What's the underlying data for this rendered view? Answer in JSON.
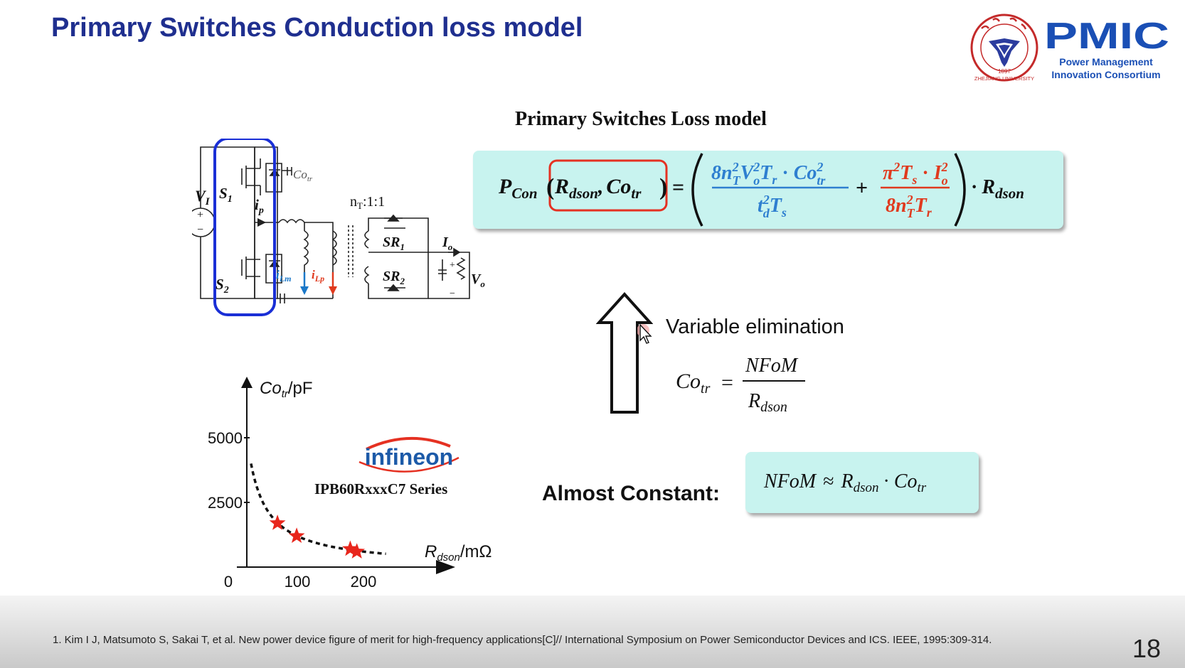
{
  "slide": {
    "title": "Primary Switches Conduction loss model",
    "page_number": "18",
    "footnote": "1. Kim I J, Matsumoto S, Sakai T, et al. New power device figure of merit for high-frequency applications[C]// International Symposium on Power Semiconductor Devices and ICS. IEEE, 1995:309-314."
  },
  "logo": {
    "brand": "PMIC",
    "line1": "Power Management",
    "line2": "Innovation Consortium",
    "seal_text": "ZHEJIANG UNIVERSITY",
    "seal_year": "1897"
  },
  "loss_model": {
    "heading": "Primary Switches Loss model",
    "equation": {
      "lhs_P": "P",
      "lhs_P_sub": "Con",
      "arg_R": "R",
      "arg_R_sub": "dson",
      "arg_sep": ",",
      "arg_C": "Co",
      "arg_C_sub": "tr",
      "equals": "=",
      "term1_num": "8n",
      "term1_den": "t",
      "plus": "+",
      "term2_den": "8n",
      "mult": "·",
      "rhs_R": "R",
      "rhs_R_sub": "dson"
    },
    "colors": {
      "term1": "#2e7fd0",
      "term2": "#e03a1e",
      "highlight_box": "#e53122",
      "box_bg": "#c8f3ef"
    }
  },
  "circuit": {
    "vin": "V",
    "vin_sub": "I",
    "s1": "S",
    "s1_sub": "1",
    "s2": "S",
    "s2_sub": "2",
    "cotr": "Co",
    "cotr_sub": "tr",
    "ip": "i",
    "ip_sub": "p",
    "ilm": "i",
    "ilm_sub": "Lm",
    "ilp": "i",
    "ilp_sub": "Lp",
    "turns": "n",
    "turns_sub": "T",
    "turns_ratio": ":1:1",
    "sr1": "SR",
    "sr1_sub": "1",
    "sr2": "SR",
    "sr2_sub": "2",
    "io": "I",
    "io_sub": "o",
    "vo": "V",
    "vo_sub": "o",
    "plus": "+",
    "minus": "−",
    "colors": {
      "highlight": "#1a2fd6",
      "ilm": "#1b78c8",
      "ilp": "#e03a1e"
    }
  },
  "chart_data": {
    "type": "scatter",
    "ylabel": "Co",
    "ylabel_sub": "tr",
    "ylabel_unit": "/pF",
    "xlabel": "R",
    "xlabel_sub": "dson",
    "xlabel_unit": "/mΩ",
    "x_ticks": [
      "0",
      "100",
      "200"
    ],
    "y_ticks": [
      "5000",
      "2500"
    ],
    "xlim": [
      0,
      300
    ],
    "ylim": [
      0,
      5000
    ],
    "series": [
      {
        "x": [
          70,
          99,
          180,
          190
        ],
        "y": [
          1700,
          1200,
          700,
          600
        ]
      }
    ],
    "trend_curve": {
      "nfom": 120000,
      "x_from": 30,
      "x_to": 235
    },
    "maker": "infineon",
    "series_label": "IPB60RxxxC7 Series",
    "colors": {
      "points": "#e8261c",
      "curve": "#111111",
      "maker": "#1c5aa8",
      "maker_arc": "#e53122"
    }
  },
  "elimination": {
    "label": "Variable elimination",
    "lhs": "Co",
    "lhs_sub": "tr",
    "equals": "=",
    "numerator": "NFoM",
    "den": "R",
    "den_sub": "dson"
  },
  "constant": {
    "label": "Almost Constant:",
    "nfom": "NFoM",
    "approx": "≈",
    "r": "R",
    "r_sub": "dson",
    "dot": "·",
    "co": "Co",
    "co_sub": "tr"
  }
}
